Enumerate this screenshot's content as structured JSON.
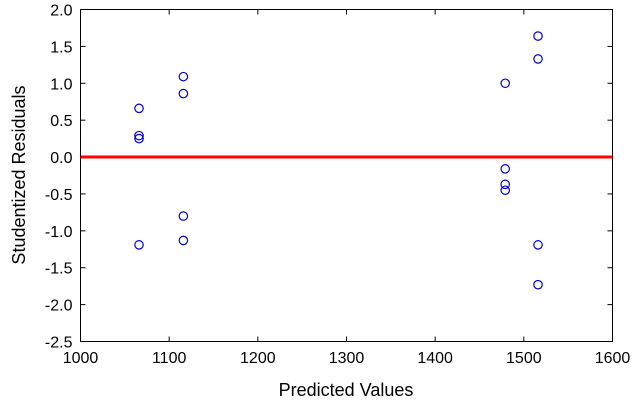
{
  "chart_data": {
    "type": "scatter",
    "xlabel": "Predicted Values",
    "ylabel": "Studentized Residuals",
    "xlim": [
      1000,
      1600
    ],
    "ylim": [
      -2.5,
      2.0
    ],
    "x_ticks": [
      1000,
      1100,
      1200,
      1300,
      1400,
      1500,
      1600
    ],
    "y_ticks": [
      2.0,
      1.5,
      1.0,
      0.5,
      0.0,
      -0.5,
      -1.0,
      -1.5,
      -2.0,
      -2.5
    ],
    "x_tick_labels": [
      "1000",
      "1100",
      "1200",
      "1300",
      "1400",
      "1500",
      "1600"
    ],
    "y_tick_labels": [
      "2.0",
      "1.5",
      "1.0",
      "0.5",
      "0.0",
      "-0.5",
      "-1.0",
      "-1.5",
      "-2.0",
      "-2.5"
    ],
    "reference_line": {
      "y": 0.0,
      "color": "#ff0000"
    },
    "marker_color": "#0000cc",
    "marker_shape": "open-circle",
    "grid": false,
    "points": [
      {
        "x": 1066,
        "y": 0.66
      },
      {
        "x": 1066,
        "y": 0.29
      },
      {
        "x": 1066,
        "y": 0.25
      },
      {
        "x": 1066,
        "y": -1.19
      },
      {
        "x": 1116,
        "y": 1.09
      },
      {
        "x": 1116,
        "y": 0.86
      },
      {
        "x": 1116,
        "y": -0.8
      },
      {
        "x": 1116,
        "y": -1.13
      },
      {
        "x": 1479,
        "y": 1.0
      },
      {
        "x": 1479,
        "y": -0.16
      },
      {
        "x": 1479,
        "y": -0.37
      },
      {
        "x": 1479,
        "y": -0.45
      },
      {
        "x": 1516,
        "y": 1.64
      },
      {
        "x": 1516,
        "y": 1.33
      },
      {
        "x": 1516,
        "y": -1.19
      },
      {
        "x": 1516,
        "y": -1.73
      }
    ]
  }
}
